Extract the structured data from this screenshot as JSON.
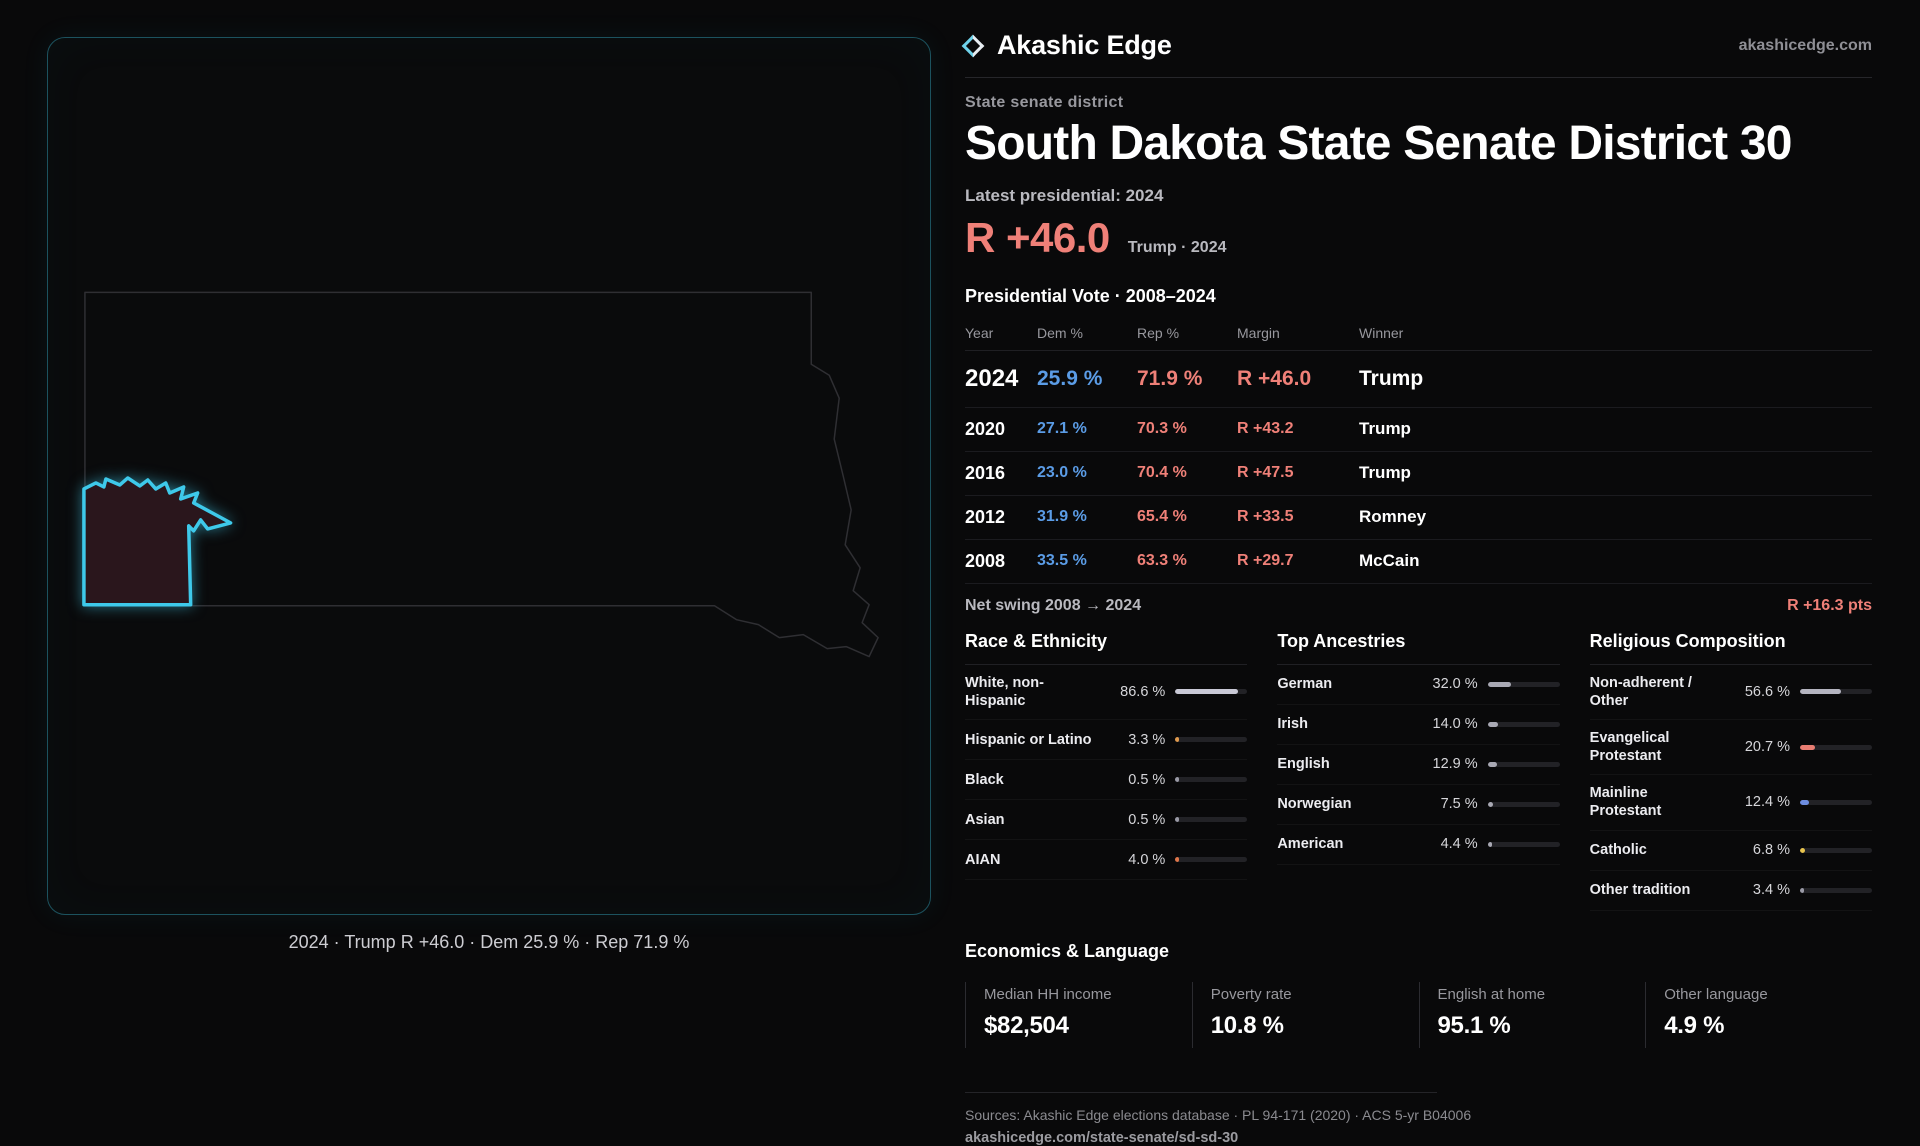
{
  "colors": {
    "dem": "#5b9ce6",
    "rep": "#ef8078",
    "accent": "#3ec9ea",
    "district_fill": "#2a161c",
    "bar_track": "#222226"
  },
  "brand": {
    "name": "Akashic Edge",
    "domain": "akashicedge.com"
  },
  "map": {
    "caption": "2024 · Trump R +46.0 · Dem 25.9 % · Rep 71.9 %"
  },
  "profile": {
    "kicker": "State senate district",
    "title": "South Dakota State Senate District 30",
    "latest_label": "Latest presidential: 2024",
    "headline_margin": "R +46.0",
    "headline_context": "Trump · 2024"
  },
  "presidential_table": {
    "title": "Presidential Vote · 2008–2024",
    "columns": [
      "Year",
      "Dem %",
      "Rep %",
      "Margin",
      "Winner"
    ],
    "rows": [
      {
        "year": "2024",
        "dem": "25.9 %",
        "rep": "71.9 %",
        "margin": "R +46.0",
        "winner": "Trump",
        "emphasis": true
      },
      {
        "year": "2020",
        "dem": "27.1 %",
        "rep": "70.3 %",
        "margin": "R +43.2",
        "winner": "Trump",
        "emphasis": false
      },
      {
        "year": "2016",
        "dem": "23.0 %",
        "rep": "70.4 %",
        "margin": "R +47.5",
        "winner": "Trump",
        "emphasis": false
      },
      {
        "year": "2012",
        "dem": "31.9 %",
        "rep": "65.4 %",
        "margin": "R +33.5",
        "winner": "Romney",
        "emphasis": false
      },
      {
        "year": "2008",
        "dem": "33.5 %",
        "rep": "63.3 %",
        "margin": "R +29.7",
        "winner": "McCain",
        "emphasis": false
      }
    ]
  },
  "net_swing": {
    "label": "Net swing 2008 → 2024",
    "value": "R +16.3 pts"
  },
  "demographics": [
    {
      "title": "Race & Ethnicity",
      "rows": [
        {
          "label": "White, non-Hispanic",
          "value": "86.6 %",
          "pct": 86.6,
          "color": "#c9c9d6"
        },
        {
          "label": "Hispanic or Latino",
          "value": "3.3 %",
          "pct": 3.3,
          "color": "#e09a4e"
        },
        {
          "label": "Black",
          "value": "0.5 %",
          "pct": 0.5,
          "color": "#9a9aa6"
        },
        {
          "label": "Asian",
          "value": "0.5 %",
          "pct": 0.5,
          "color": "#9a9aa6"
        },
        {
          "label": "AIAN",
          "value": "4.0 %",
          "pct": 4.0,
          "color": "#e0764a"
        }
      ]
    },
    {
      "title": "Top Ancestries",
      "rows": [
        {
          "label": "German",
          "value": "32.0 %",
          "pct": 32.0,
          "color": "#a9a9b4"
        },
        {
          "label": "Irish",
          "value": "14.0 %",
          "pct": 14.0,
          "color": "#a9a9b4"
        },
        {
          "label": "English",
          "value": "12.9 %",
          "pct": 12.9,
          "color": "#a9a9b4"
        },
        {
          "label": "Norwegian",
          "value": "7.5 %",
          "pct": 7.5,
          "color": "#a9a9b4"
        },
        {
          "label": "American",
          "value": "4.4 %",
          "pct": 4.4,
          "color": "#a9a9b4"
        }
      ]
    },
    {
      "title": "Religious Composition",
      "rows": [
        {
          "label": "Non-adherent / Other",
          "value": "56.6 %",
          "pct": 56.6,
          "color": "#b4b4c0"
        },
        {
          "label": "Evangelical Protestant",
          "value": "20.7 %",
          "pct": 20.7,
          "color": "#e87d72"
        },
        {
          "label": "Mainline Protestant",
          "value": "12.4 %",
          "pct": 12.4,
          "color": "#6d8de0"
        },
        {
          "label": "Catholic",
          "value": "6.8 %",
          "pct": 6.8,
          "color": "#e8c44e"
        },
        {
          "label": "Other tradition",
          "value": "3.4 %",
          "pct": 3.4,
          "color": "#9a9aa6"
        }
      ]
    }
  ],
  "economics": {
    "title": "Economics & Language",
    "stats": [
      {
        "key": "median-hh-income",
        "label": "Median HH income",
        "value": "$82,504"
      },
      {
        "key": "poverty-rate",
        "label": "Poverty rate",
        "value": "10.8 %"
      },
      {
        "key": "english-at-home",
        "label": "English at home",
        "value": "95.1 %"
      },
      {
        "key": "other-language",
        "label": "Other language",
        "value": "4.9 %"
      }
    ]
  },
  "footer": {
    "sources": "Sources: Akashic Edge elections database · PL 94-171 (2020) · ACS 5-yr B04006",
    "permalink": "akashicedge.com/state-senate/sd-sd-30"
  }
}
